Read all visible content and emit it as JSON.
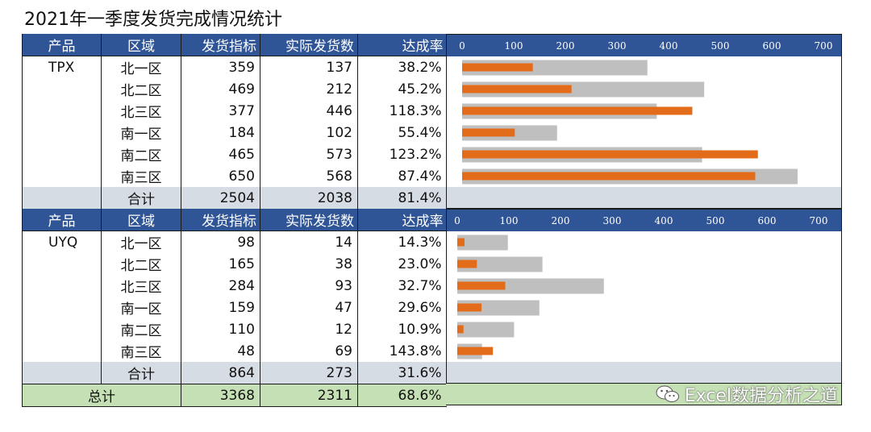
{
  "title": "2021年一季度发货完成情况统计",
  "headers": [
    "产品",
    "区域",
    "发货指标",
    "实际发货数",
    "达成率"
  ],
  "tables": [
    {
      "product": "TPX",
      "rows": [
        {
          "region": "北一区",
          "target": "359",
          "actual": "137",
          "rate": "38.2%"
        },
        {
          "region": "北二区",
          "target": "469",
          "actual": "212",
          "rate": "45.2%"
        },
        {
          "region": "北三区",
          "target": "377",
          "actual": "446",
          "rate": "118.3%"
        },
        {
          "region": "南一区",
          "target": "184",
          "actual": "102",
          "rate": "55.4%"
        },
        {
          "region": "南二区",
          "target": "465",
          "actual": "573",
          "rate": "123.2%"
        },
        {
          "region": "南三区",
          "target": "650",
          "actual": "568",
          "rate": "87.4%"
        }
      ],
      "subtotal": {
        "label": "合计",
        "target": "2504",
        "actual": "2038",
        "rate": "81.4%"
      }
    },
    {
      "product": "UYQ",
      "rows": [
        {
          "region": "北一区",
          "target": "98",
          "actual": "14",
          "rate": "14.3%"
        },
        {
          "region": "北二区",
          "target": "165",
          "actual": "38",
          "rate": "23.0%"
        },
        {
          "region": "北三区",
          "target": "284",
          "actual": "93",
          "rate": "32.7%"
        },
        {
          "region": "南一区",
          "target": "159",
          "actual": "47",
          "rate": "29.6%"
        },
        {
          "region": "南二区",
          "target": "110",
          "actual": "12",
          "rate": "10.9%"
        },
        {
          "region": "南三区",
          "target": "48",
          "actual": "69",
          "rate": "143.8%"
        }
      ],
      "subtotal": {
        "label": "合计",
        "target": "864",
        "actual": "273",
        "rate": "31.6%"
      }
    }
  ],
  "grand_total": {
    "label": "总计",
    "target": "3368",
    "actual": "2311",
    "rate": "68.6%"
  },
  "watermark": "Excel数据分析之道",
  "colors": {
    "header": "#2f5597",
    "subtotal": "#d6dce4",
    "total": "#c5e0b4",
    "target_bar": "#bfbfbf",
    "actual_bar": "#e36c1a"
  },
  "chart_data": [
    {
      "type": "bar",
      "orientation": "horizontal",
      "categories": [
        "北一区",
        "北二区",
        "北三区",
        "南一区",
        "南二区",
        "南三区"
      ],
      "series": [
        {
          "name": "发货指标",
          "values": [
            359,
            469,
            377,
            184,
            465,
            650
          ]
        },
        {
          "name": "实际发货数",
          "values": [
            137,
            212,
            446,
            102,
            573,
            568
          ]
        }
      ],
      "xlim": [
        0,
        700
      ],
      "ticks": [
        0,
        100,
        200,
        300,
        400,
        500,
        600,
        700
      ]
    },
    {
      "type": "bar",
      "orientation": "horizontal",
      "categories": [
        "北一区",
        "北二区",
        "北三区",
        "南一区",
        "南二区",
        "南三区"
      ],
      "series": [
        {
          "name": "发货指标",
          "values": [
            98,
            165,
            284,
            159,
            110,
            48
          ]
        },
        {
          "name": "实际发货数",
          "values": [
            14,
            38,
            93,
            47,
            12,
            69
          ]
        }
      ],
      "xlim": [
        0,
        700
      ],
      "ticks": [
        0,
        100,
        200,
        300,
        400,
        500,
        600,
        700
      ]
    }
  ]
}
